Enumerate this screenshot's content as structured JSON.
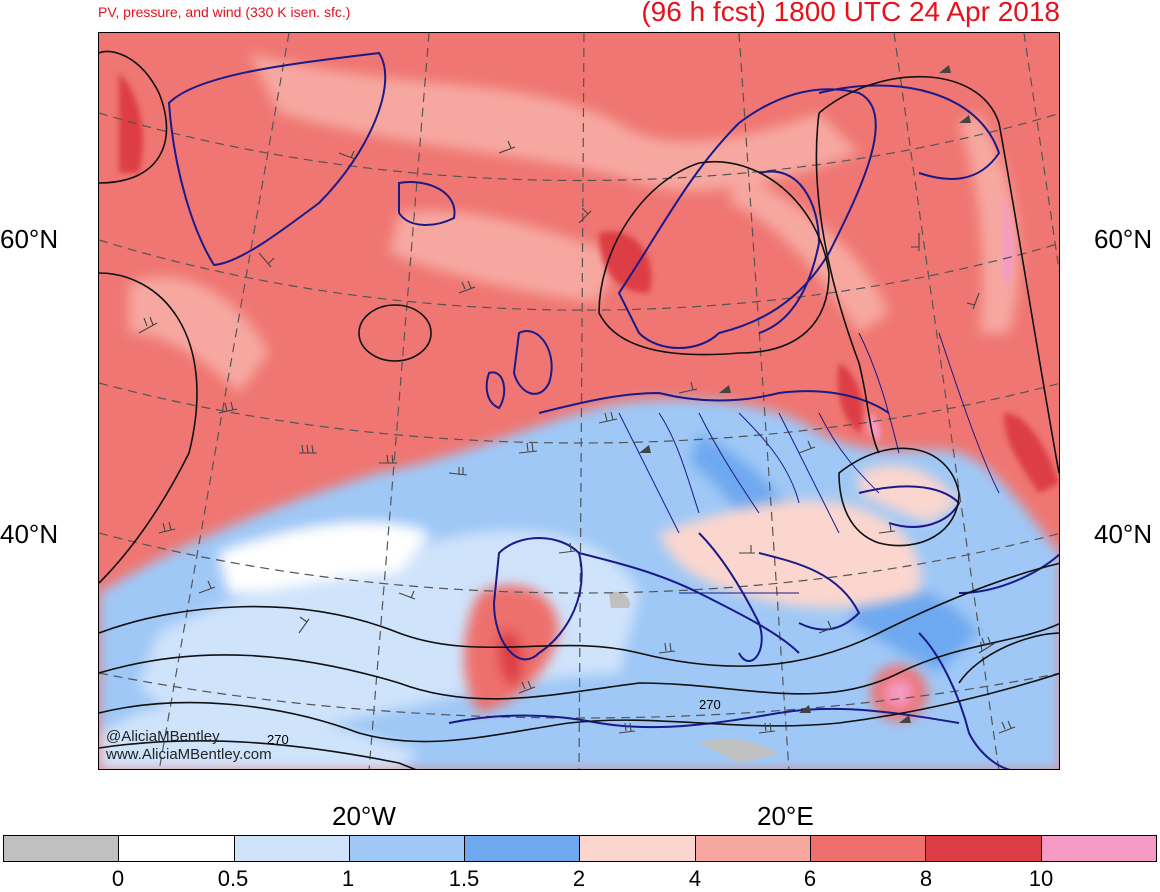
{
  "header": {
    "left_title": "PV, pressure, and wind (330 K isen. sfc.)",
    "right_title": "(96 h fcst) 1800 UTC 24 Apr 2018"
  },
  "axes": {
    "lat_labels": [
      "60°N",
      "40°N"
    ],
    "lon_labels": [
      "20°W",
      "20°E"
    ]
  },
  "contour_labels": [
    "270",
    "270"
  ],
  "credits": {
    "twitter": "@AliciaMBentley",
    "website": "www.AliciaMBentley.com"
  },
  "colorbar": {
    "colors": [
      "#c0c0c0",
      "#ffffff",
      "#cfe3fb",
      "#9fc8f6",
      "#6ea9f0",
      "#fbd6cf",
      "#f6a8a0",
      "#ee6f6c",
      "#dd3d45",
      "#f59bc5"
    ],
    "labels": [
      "0",
      "0.5",
      "1",
      "1.5",
      "2",
      "4",
      "6",
      "8",
      "10"
    ]
  },
  "palette": {
    "coast": "#1a1a8a",
    "title_red": "#e8101a",
    "pv_high": "#ee6f6c",
    "pv_med": "#f6a8a0",
    "pv_low": "#9fc8f6"
  }
}
